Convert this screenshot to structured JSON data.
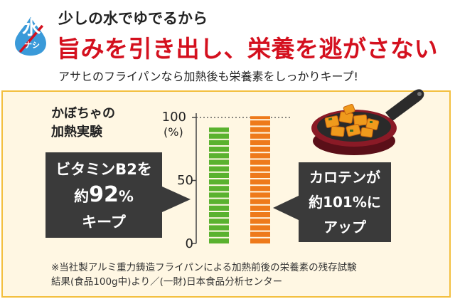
{
  "header": {
    "badge_main": "水",
    "badge_sub": "ナシ",
    "line1": "少しの水でゆでるから",
    "line2": "旨みを引き出し、栄養を逃がさない",
    "line3": "アサヒのフライパンなら加熱後も栄養素をしっかりキープ!"
  },
  "experiment": {
    "title_line1": "かぼちゃの",
    "title_line2": "加熱実験"
  },
  "chart": {
    "tick_100": "100",
    "tick_unit": "(%)",
    "tick_50": "50",
    "tick_0": "0"
  },
  "chart_data": {
    "type": "bar",
    "categories": [
      "ビタミンB2",
      "カロテン"
    ],
    "values": [
      92,
      101
    ],
    "ylim": [
      0,
      100
    ],
    "colors": [
      "#5ab22f",
      "#ee7a1b"
    ],
    "reference_line": 100
  },
  "callout_left": {
    "line1": "ビタミンB2を",
    "line2_prefix": "約",
    "line2_value": "92",
    "line2_suffix": "%",
    "line3": "キープ"
  },
  "callout_right": {
    "line1": "カロテンが",
    "line2": "約101%に",
    "line3": "アップ"
  },
  "footnote": {
    "line1": "※当社製アルミ重力鋳造フライパンによる加熱前後の栄養素の残存試験",
    "line2": "結果(食品100g中)より／(一財)日本食品分析センター"
  },
  "colors": {
    "accent_red": "#d4101e",
    "panel_bg": "#fff7e3",
    "panel_border": "#f3bf3e",
    "badge_blue": "#3a9ad9",
    "callout_bg": "#3a3a3a"
  }
}
